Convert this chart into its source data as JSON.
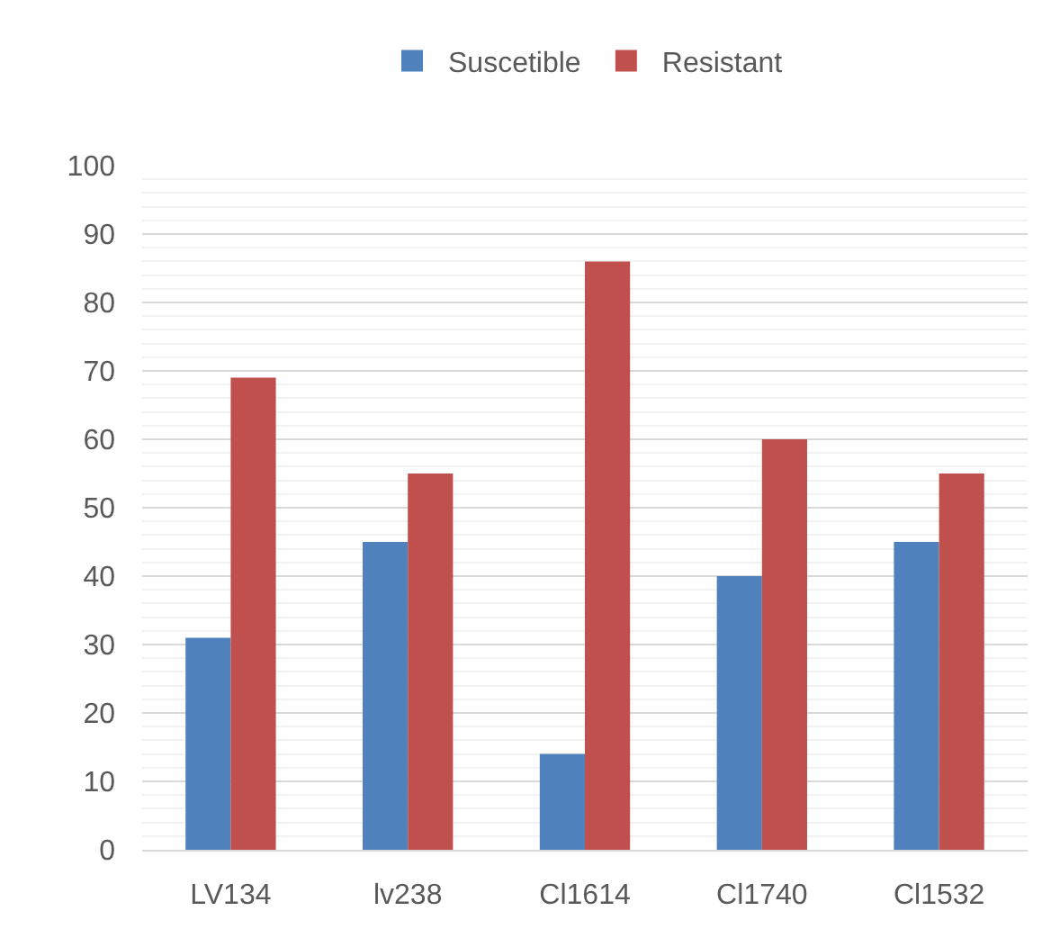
{
  "chart_data": {
    "type": "bar",
    "categories": [
      "LV134",
      "lv238",
      "Cl1614",
      "Cl1740",
      "Cl1532"
    ],
    "series": [
      {
        "name": "Suscetible",
        "color": "#4f81bd",
        "values": [
          31,
          45,
          14,
          40,
          45
        ]
      },
      {
        "name": "Resistant",
        "color": "#c0504d",
        "values": [
          69,
          55,
          86,
          60,
          55
        ]
      }
    ],
    "ylim": [
      0,
      100
    ],
    "yticks": [
      0,
      {
        "value": 2,
        "label": null
      },
      {
        "value": 4,
        "label": null
      },
      {
        "value": 6,
        "label": null
      },
      {
        "value": 8,
        "label": null
      },
      10,
      {
        "value": 12,
        "label": null
      },
      {
        "value": 14,
        "label": null
      },
      {
        "value": 16,
        "label": null
      },
      {
        "value": 18,
        "label": null
      },
      20,
      {
        "value": 22,
        "label": null
      },
      {
        "value": 24,
        "label": null
      },
      {
        "value": 26,
        "label": null
      },
      {
        "value": 28,
        "label": null
      },
      30,
      {
        "value": 32,
        "label": null
      },
      {
        "value": 34,
        "label": null
      },
      {
        "value": 36,
        "label": null
      },
      {
        "value": 38,
        "label": null
      },
      40,
      {
        "value": 42,
        "label": null
      },
      {
        "value": 44,
        "label": null
      },
      {
        "value": 46,
        "label": null
      },
      {
        "value": 48,
        "label": null
      },
      50,
      {
        "value": 52,
        "label": null
      },
      {
        "value": 54,
        "label": null
      },
      {
        "value": 56,
        "label": null
      },
      {
        "value": 58,
        "label": null
      },
      60,
      {
        "value": 62,
        "label": null
      },
      {
        "value": 64,
        "label": null
      },
      {
        "value": 66,
        "label": null
      },
      {
        "value": 68,
        "label": null
      },
      70,
      {
        "value": 72,
        "label": null
      },
      {
        "value": 74,
        "label": null
      },
      {
        "value": 76,
        "label": null
      },
      {
        "value": 78,
        "label": null
      },
      80,
      {
        "value": 82,
        "label": null
      },
      {
        "value": 84,
        "label": null
      },
      {
        "value": 86,
        "label": null
      },
      {
        "value": 88,
        "label": null
      },
      90,
      {
        "value": 92,
        "label": null
      },
      {
        "value": 94,
        "label": null
      },
      {
        "value": 96,
        "label": null
      },
      {
        "value": 98,
        "label": null
      },
      100
    ],
    "grid": "y",
    "legend": "top"
  }
}
